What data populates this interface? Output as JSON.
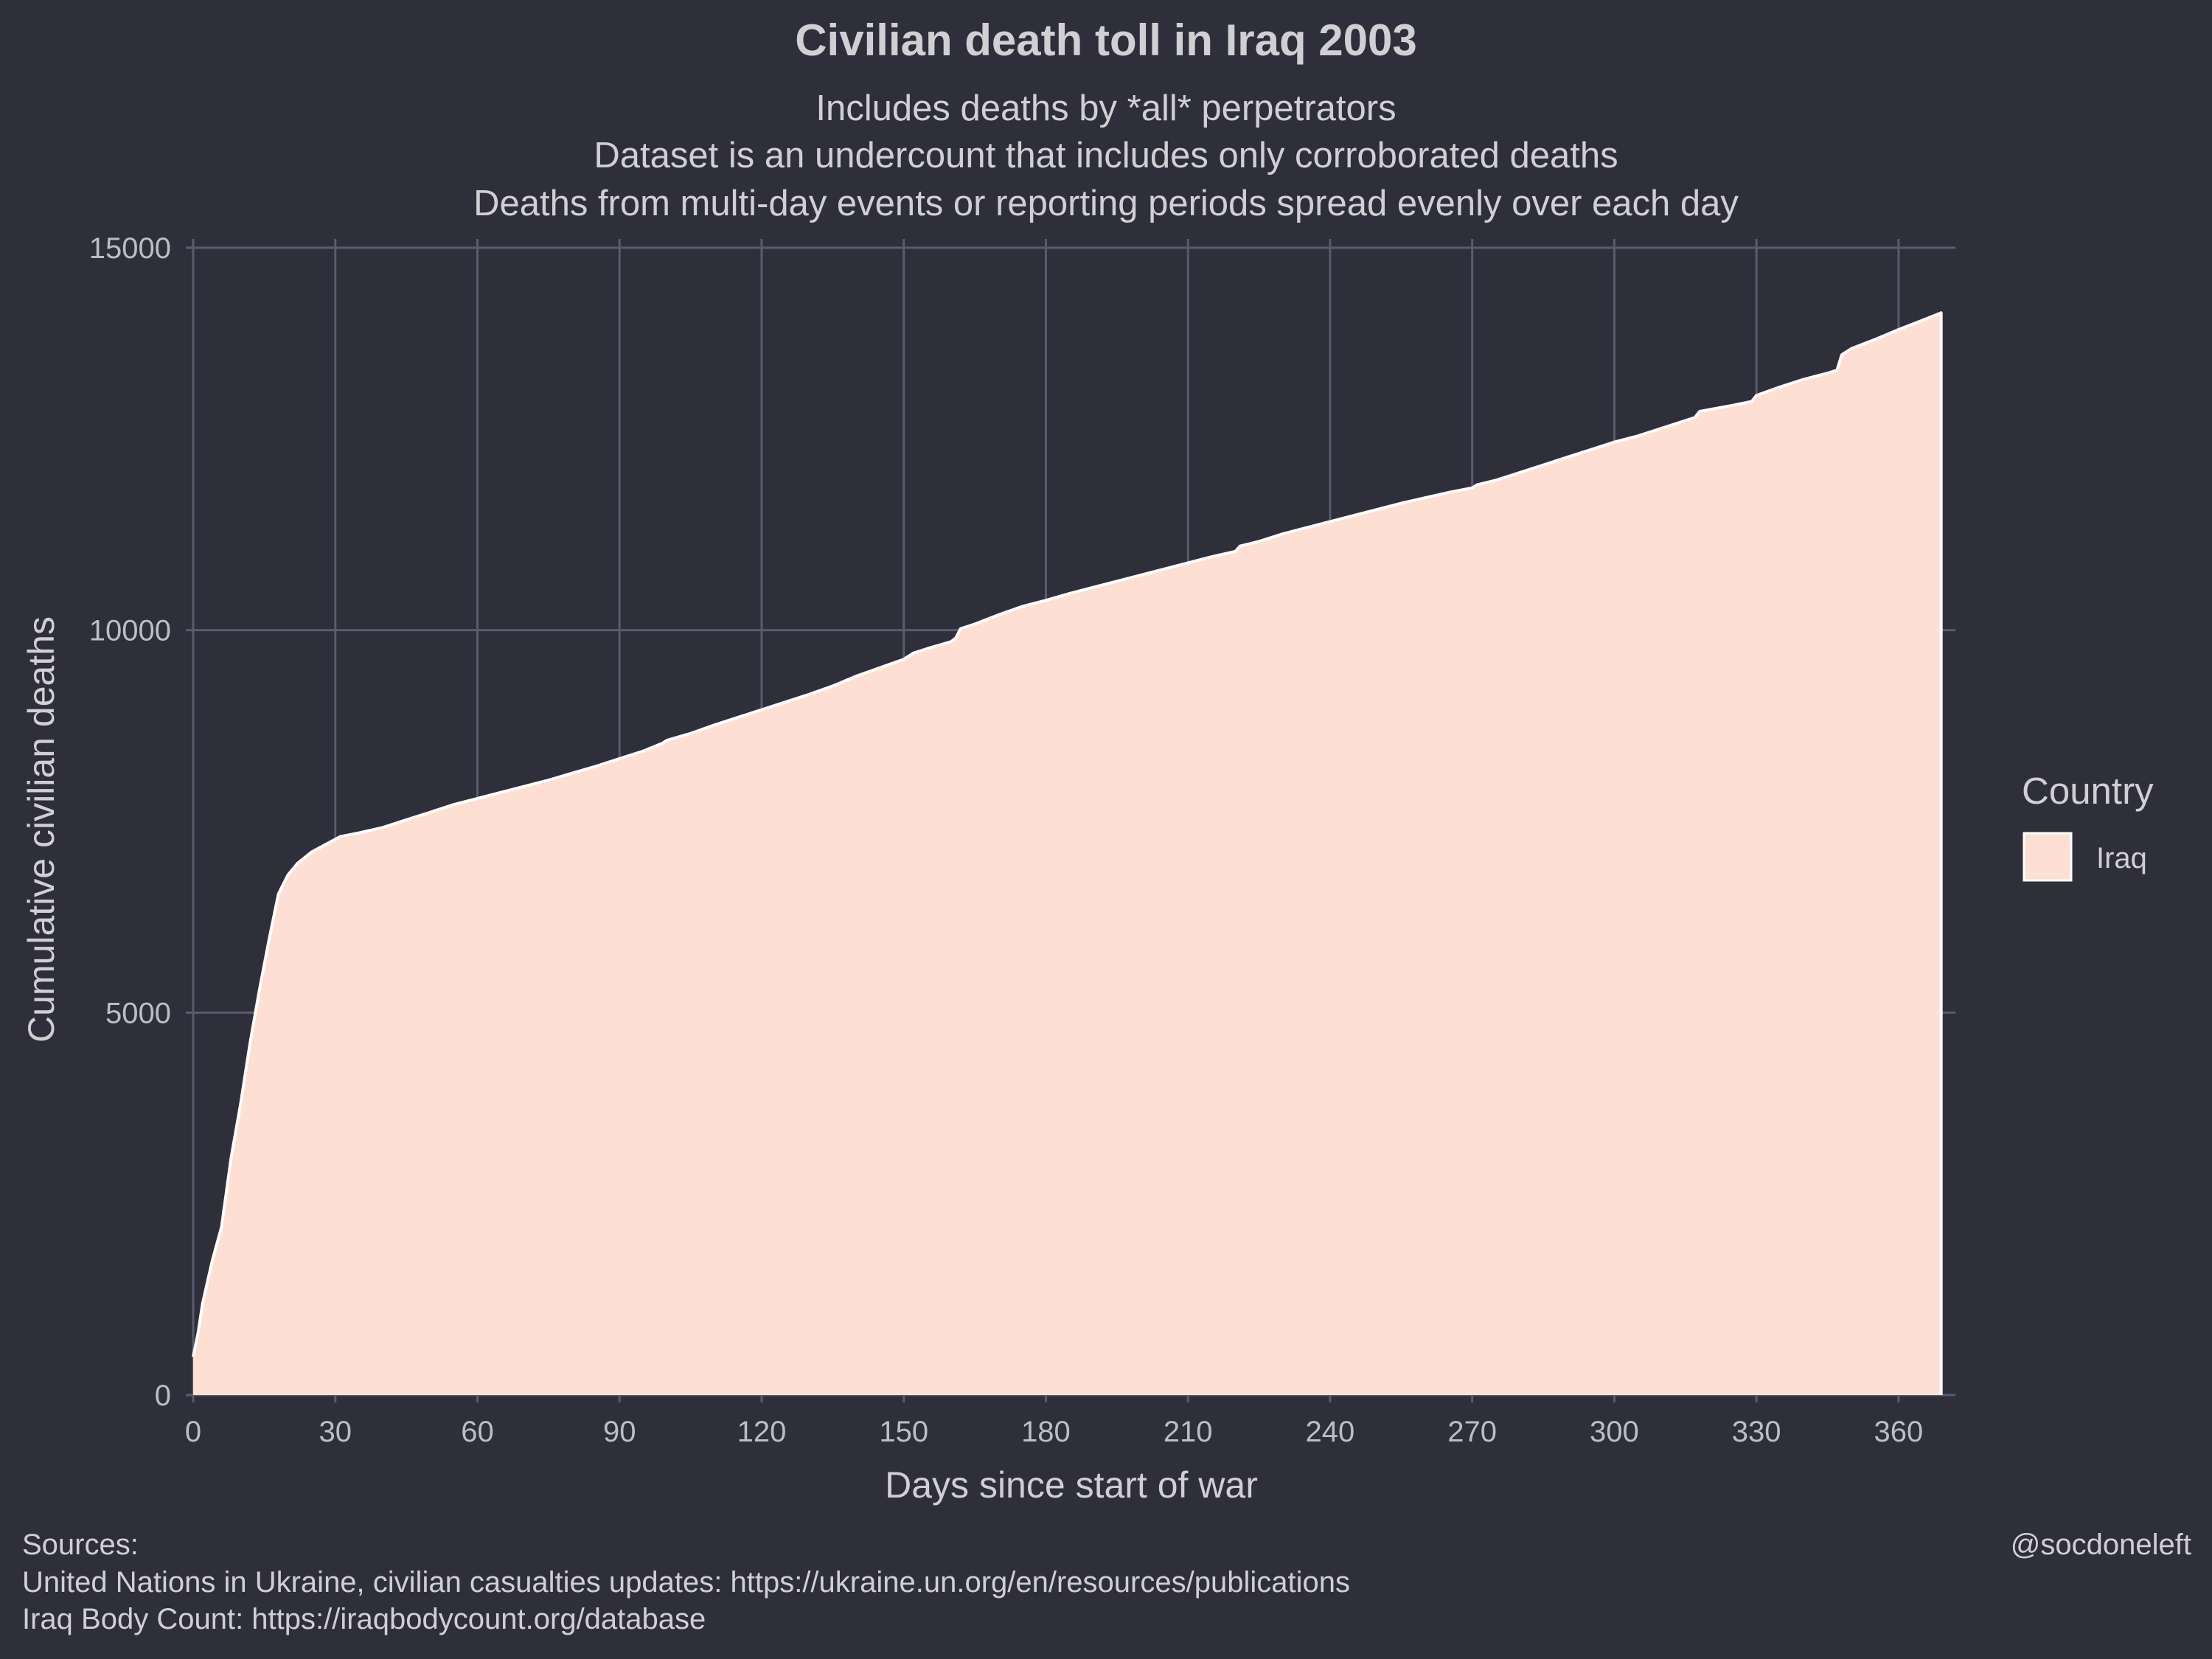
{
  "chart_data": {
    "type": "area",
    "title": "Civilian death toll in Iraq 2003",
    "subtitle": [
      "Includes deaths by *all* perpetrators",
      "Dataset is an undercount that includes only corroborated deaths",
      "Deaths from multi-day events or reporting periods spread evenly over each day"
    ],
    "xlabel": "Days since start of war",
    "ylabel": "Cumulative civilian deaths",
    "xlim": [
      0,
      372
    ],
    "ylim": [
      0,
      15000
    ],
    "xticks": [
      "0",
      "30",
      "60",
      "90",
      "120",
      "150",
      "180",
      "210",
      "240",
      "270",
      "300",
      "330",
      "360"
    ],
    "yticks": [
      "0",
      "5000",
      "10000",
      "15000"
    ],
    "grid": true,
    "legend": {
      "title": "Country",
      "position": "right",
      "entries": [
        {
          "name": "Iraq",
          "color": "#fde0d3"
        }
      ]
    },
    "series": [
      {
        "name": "Iraq",
        "color": "#fde0d3",
        "x": [
          0,
          1,
          2,
          4,
          6,
          8,
          10,
          12,
          14,
          16,
          18,
          20,
          22,
          25,
          28,
          31,
          35,
          40,
          45,
          50,
          55,
          60,
          65,
          70,
          75,
          80,
          85,
          90,
          95,
          99,
          100,
          105,
          110,
          115,
          120,
          125,
          130,
          135,
          140,
          145,
          150,
          152,
          155,
          160,
          161,
          162,
          165,
          170,
          175,
          180,
          185,
          190,
          195,
          200,
          205,
          210,
          215,
          220,
          221,
          225,
          230,
          235,
          240,
          245,
          250,
          255,
          260,
          265,
          270,
          271,
          275,
          280,
          285,
          290,
          295,
          300,
          305,
          310,
          315,
          317,
          318,
          325,
          329,
          330,
          335,
          340,
          345,
          347,
          348,
          350,
          355,
          360,
          365,
          369
        ],
        "values": [
          500,
          800,
          1200,
          1750,
          2200,
          3100,
          3800,
          4600,
          5300,
          5950,
          6550,
          6800,
          6950,
          7100,
          7200,
          7300,
          7350,
          7420,
          7520,
          7620,
          7720,
          7800,
          7880,
          7960,
          8040,
          8130,
          8220,
          8320,
          8420,
          8520,
          8560,
          8650,
          8760,
          8860,
          8960,
          9060,
          9160,
          9270,
          9400,
          9510,
          9620,
          9700,
          9760,
          9850,
          9900,
          10020,
          10080,
          10200,
          10310,
          10390,
          10480,
          10560,
          10640,
          10720,
          10800,
          10880,
          10960,
          11030,
          11100,
          11160,
          11260,
          11340,
          11420,
          11500,
          11580,
          11660,
          11730,
          11800,
          11860,
          11900,
          11960,
          12060,
          12160,
          12260,
          12360,
          12460,
          12540,
          12640,
          12740,
          12780,
          12860,
          12940,
          12990,
          13070,
          13180,
          13280,
          13360,
          13400,
          13600,
          13680,
          13800,
          13930,
          14050,
          14150
        ]
      }
    ]
  },
  "caption": {
    "sources_lines": [
      "Sources:",
      "United Nations in Ukraine, civilian casualties updates: https://ukraine.un.org/en/resources/publications",
      "Iraq Body Count: https://iraqbodycount.org/database"
    ],
    "handle": "@socdoneleft"
  },
  "colors": {
    "background": "#2f2f3b",
    "grid": "#5b5b6e",
    "area_fill": "#fde0d3",
    "outline": "#ffffff"
  }
}
